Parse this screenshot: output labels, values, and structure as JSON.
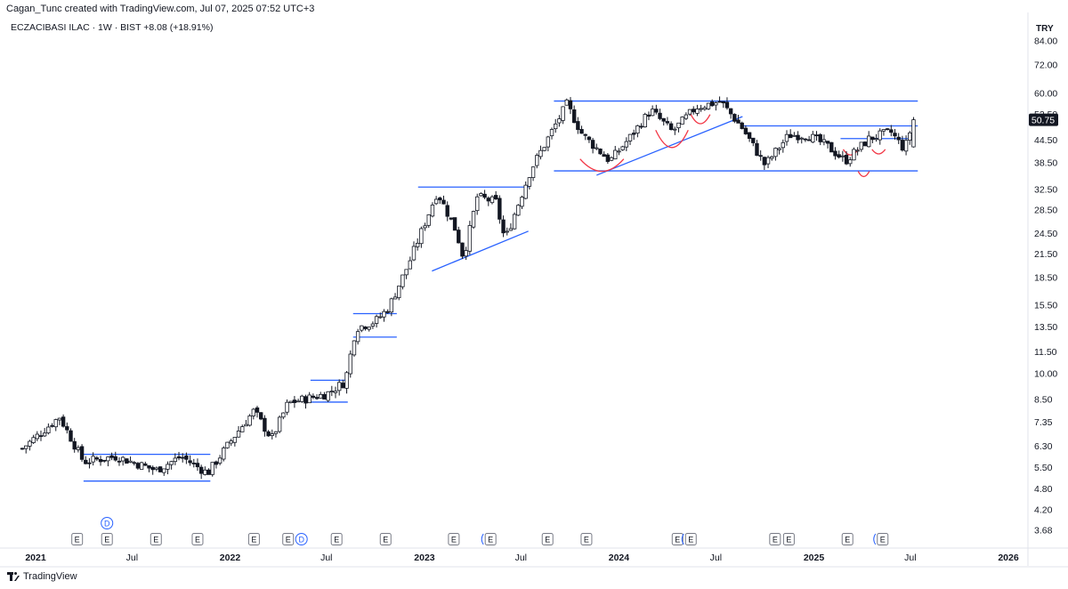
{
  "header": {
    "caption": "Cagan_Tunc created with TradingView.com, Jul 07, 2025 07:52 UTC+3"
  },
  "symbol": {
    "name": "ECZACIBASI ILAC",
    "interval": "1W",
    "exchange": "BIST",
    "change": "+8.08 (+18.91%)"
  },
  "currency": "TRY",
  "footer": {
    "brand": "TradingView"
  },
  "colors": {
    "trendline": "#2962ff",
    "arc": "#f23645",
    "candle_up_fill": "#ffffff",
    "candle_down_fill": "#131722",
    "candle_border": "#131722",
    "price_label_bg": "#131722"
  },
  "chart_data": {
    "type": "candlestick",
    "scale": "log",
    "y_ticks": [
      3.68,
      4.2,
      4.8,
      5.5,
      6.3,
      7.35,
      8.5,
      10.0,
      11.5,
      13.5,
      15.5,
      18.5,
      21.5,
      24.5,
      28.5,
      32.5,
      38.5,
      44.5,
      52.5,
      60.0,
      72.0,
      84.0
    ],
    "y_tick_labels": [
      "3.68",
      "4.20",
      "4.80",
      "5.50",
      "6.30",
      "7.35",
      "8.50",
      "10.00",
      "11.50",
      "13.50",
      "15.50",
      "18.50",
      "21.50",
      "24.50",
      "28.50",
      "32.50",
      "38.50",
      "44.50",
      "52.50",
      "60.00",
      "72.00",
      "84.00"
    ],
    "last_price": "50.75",
    "x_ticks": [
      {
        "label": "2021",
        "date": "2021-01-01",
        "bold": true
      },
      {
        "label": "Jul",
        "date": "2021-07-01",
        "bold": false
      },
      {
        "label": "2022",
        "date": "2022-01-01",
        "bold": true
      },
      {
        "label": "Jul",
        "date": "2022-07-01",
        "bold": false
      },
      {
        "label": "2023",
        "date": "2023-01-01",
        "bold": true
      },
      {
        "label": "Jul",
        "date": "2023-07-01",
        "bold": false
      },
      {
        "label": "2024",
        "date": "2024-01-01",
        "bold": true
      },
      {
        "label": "Jul",
        "date": "2024-07-01",
        "bold": false
      },
      {
        "label": "2025",
        "date": "2025-01-01",
        "bold": true
      },
      {
        "label": "Jul",
        "date": "2025-07-01",
        "bold": false
      },
      {
        "label": "2026",
        "date": "2026-01-01",
        "bold": true
      }
    ],
    "keypoints": [
      [
        "2020-12-01",
        6.1
      ],
      [
        "2021-02-15",
        7.6
      ],
      [
        "2021-04-01",
        5.7
      ],
      [
        "2021-06-01",
        5.9
      ],
      [
        "2021-08-15",
        5.4
      ],
      [
        "2021-10-01",
        5.9
      ],
      [
        "2021-11-20",
        5.3
      ],
      [
        "2022-01-15",
        6.9
      ],
      [
        "2022-02-15",
        7.9
      ],
      [
        "2022-03-20",
        6.6
      ],
      [
        "2022-04-20",
        8.3
      ],
      [
        "2022-07-01",
        8.8
      ],
      [
        "2022-08-05",
        9.5
      ],
      [
        "2022-08-25",
        13.4
      ],
      [
        "2022-10-01",
        14.0
      ],
      [
        "2022-10-25",
        15.2
      ],
      [
        "2022-12-01",
        20.0
      ],
      [
        "2023-01-25",
        32.0
      ],
      [
        "2023-03-01",
        25.0
      ],
      [
        "2023-03-15",
        21.0
      ],
      [
        "2023-04-10",
        31.0
      ],
      [
        "2023-05-15",
        30.0
      ],
      [
        "2023-06-01",
        23.5
      ],
      [
        "2023-07-20",
        37.0
      ],
      [
        "2023-09-25",
        56.0
      ],
      [
        "2023-10-25",
        46.0
      ],
      [
        "2023-12-15",
        39.0
      ],
      [
        "2024-01-20",
        45.0
      ],
      [
        "2024-03-01",
        54.0
      ],
      [
        "2024-04-10",
        47.0
      ],
      [
        "2024-05-25",
        55.0
      ],
      [
        "2024-07-10",
        57.0
      ],
      [
        "2024-08-20",
        48.0
      ],
      [
        "2024-10-01",
        38.0
      ],
      [
        "2024-11-15",
        46.0
      ],
      [
        "2024-12-20",
        46.0
      ],
      [
        "2025-01-25",
        43.0
      ],
      [
        "2025-03-01",
        39.0
      ],
      [
        "2025-04-15",
        45.0
      ],
      [
        "2025-05-25",
        47.0
      ],
      [
        "2025-06-20",
        42.0
      ],
      [
        "2025-07-07",
        50.75
      ]
    ],
    "trendlines": [
      {
        "from": [
          "2021-04-01",
          5.98
        ],
        "to": [
          "2021-11-25",
          5.98
        ]
      },
      {
        "from": [
          "2021-04-01",
          5.04
        ],
        "to": [
          "2021-11-25",
          5.04
        ]
      },
      {
        "from": [
          "2022-06-01",
          9.6
        ],
        "to": [
          "2022-08-10",
          9.6
        ]
      },
      {
        "from": [
          "2022-06-01",
          8.35
        ],
        "to": [
          "2022-08-10",
          8.35
        ]
      },
      {
        "from": [
          "2022-08-20",
          14.7
        ],
        "to": [
          "2022-11-10",
          14.7
        ]
      },
      {
        "from": [
          "2022-08-20",
          12.65
        ],
        "to": [
          "2022-11-10",
          12.65
        ]
      },
      {
        "from": [
          "2022-12-20",
          33.0
        ],
        "to": [
          "2023-07-15",
          33.0
        ]
      },
      {
        "from": [
          "2023-01-15",
          19.3
        ],
        "to": [
          "2023-07-15",
          24.9
        ]
      },
      {
        "from": [
          "2023-09-01",
          57.2
        ],
        "to": [
          "2025-07-15",
          57.2
        ]
      },
      {
        "from": [
          "2023-09-01",
          36.6
        ],
        "to": [
          "2025-07-15",
          36.6
        ]
      },
      {
        "from": [
          "2024-08-20",
          48.8
        ],
        "to": [
          "2025-07-15",
          48.8
        ]
      },
      {
        "from": [
          "2023-11-20",
          35.6
        ],
        "to": [
          "2024-08-20",
          51.8
        ]
      },
      {
        "from": [
          "2025-02-20",
          45.0
        ],
        "to": [
          "2025-07-05",
          45.0
        ]
      }
    ],
    "arcs": [
      {
        "from": [
          "2023-10-20",
          39.5
        ],
        "to": [
          "2024-01-10",
          39.5
        ],
        "depth": 36.5
      },
      {
        "from": [
          "2024-03-10",
          47.5
        ],
        "to": [
          "2024-05-10",
          47.5
        ],
        "depth": 42.5
      },
      {
        "from": [
          "2024-05-15",
          52.5
        ],
        "to": [
          "2024-06-20",
          52.5
        ],
        "depth": 49.5
      },
      {
        "from": [
          "2025-02-25",
          42.0
        ],
        "to": [
          "2025-03-25",
          42.0
        ],
        "depth": 40.5
      },
      {
        "from": [
          "2025-03-25",
          36.5
        ],
        "to": [
          "2025-04-15",
          36.5
        ],
        "depth": 35.3
      },
      {
        "from": [
          "2025-04-20",
          42.0
        ],
        "to": [
          "2025-05-15",
          42.0
        ],
        "depth": 40.8
      }
    ],
    "events": [
      {
        "kind": "D",
        "date": "2021-05-15",
        "row": 1,
        "circled": true
      },
      {
        "kind": "E",
        "date": "2021-03-20",
        "row": 2
      },
      {
        "kind": "E",
        "date": "2021-05-15",
        "row": 2
      },
      {
        "kind": "E",
        "date": "2021-08-15",
        "row": 2
      },
      {
        "kind": "E",
        "date": "2021-11-01",
        "row": 2
      },
      {
        "kind": "E",
        "date": "2022-02-15",
        "row": 2
      },
      {
        "kind": "E",
        "date": "2022-04-20",
        "row": 2
      },
      {
        "kind": "D",
        "date": "2022-05-15",
        "row": 2,
        "circled": true
      },
      {
        "kind": "E",
        "date": "2022-07-20",
        "row": 2
      },
      {
        "kind": "E",
        "date": "2022-10-20",
        "row": 2
      },
      {
        "kind": "E",
        "date": "2023-02-25",
        "row": 2
      },
      {
        "kind": "E",
        "date": "2023-05-05",
        "row": 2,
        "paren": true
      },
      {
        "kind": "E",
        "date": "2023-08-20",
        "row": 2
      },
      {
        "kind": "E",
        "date": "2023-11-01",
        "row": 2
      },
      {
        "kind": "E",
        "date": "2024-04-20",
        "row": 2
      },
      {
        "kind": "E",
        "date": "2024-05-15",
        "row": 2,
        "paren": true
      },
      {
        "kind": "E",
        "date": "2024-10-20",
        "row": 2
      },
      {
        "kind": "E",
        "date": "2024-11-15",
        "row": 2
      },
      {
        "kind": "E",
        "date": "2025-03-05",
        "row": 2
      },
      {
        "kind": "E",
        "date": "2025-05-10",
        "row": 2,
        "paren": true
      }
    ]
  }
}
